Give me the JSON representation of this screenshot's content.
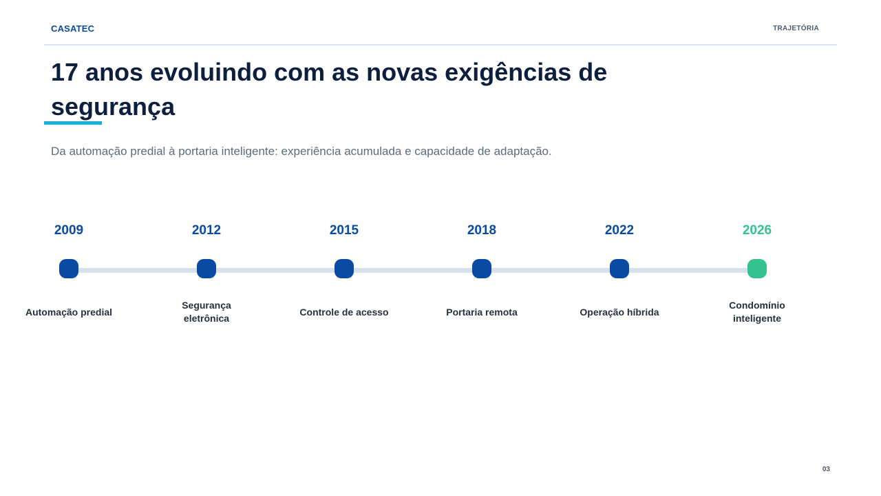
{
  "header": {
    "brand": "CASATEC",
    "section": "TRAJETÓRIA"
  },
  "title": "17 anos evoluindo com as novas exigências de segurança",
  "subtitle": "Da automação predial à portaria inteligente: experiência acumulada e capacidade de adaptação.",
  "timeline": {
    "milestones": [
      {
        "year": "2009",
        "label": "Automação predial"
      },
      {
        "year": "2012",
        "label": "Segurança eletrônica"
      },
      {
        "year": "2015",
        "label": "Controle de acesso"
      },
      {
        "year": "2018",
        "label": "Portaria remota"
      },
      {
        "year": "2022",
        "label": "Operação híbrida"
      },
      {
        "year": "2026",
        "label": "Condomínio inteligente"
      }
    ],
    "colors": {
      "past": "#0b4aa2",
      "future": "#34c38f",
      "track": "#d7e1ec"
    }
  },
  "footer": {
    "page_number": "03"
  }
}
